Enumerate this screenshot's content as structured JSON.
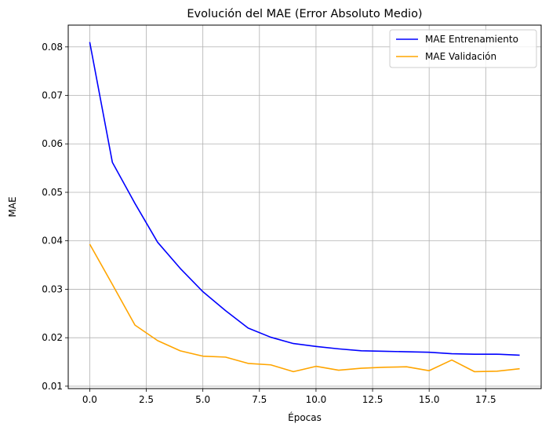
{
  "chart_data": {
    "type": "line",
    "title": "Evolución del MAE (Error Absoluto Medio)",
    "xlabel": "Épocas",
    "ylabel": "MAE",
    "xlim": [
      -0.95,
      19.95
    ],
    "ylim": [
      0.0095,
      0.0845
    ],
    "xticks": [
      0.0,
      2.5,
      5.0,
      7.5,
      10.0,
      12.5,
      15.0,
      17.5
    ],
    "xtick_labels": [
      "0.0",
      "2.5",
      "5.0",
      "7.5",
      "10.0",
      "12.5",
      "15.0",
      "17.5"
    ],
    "yticks": [
      0.01,
      0.02,
      0.03,
      0.04,
      0.05,
      0.06,
      0.07,
      0.08
    ],
    "ytick_labels": [
      "0.01",
      "0.02",
      "0.03",
      "0.04",
      "0.05",
      "0.06",
      "0.07",
      "0.08"
    ],
    "grid": true,
    "legend_position": "top-right",
    "x": [
      0,
      1,
      2,
      3,
      4,
      5,
      6,
      7,
      8,
      9,
      10,
      11,
      12,
      13,
      14,
      15,
      16,
      17,
      18,
      19
    ],
    "series": [
      {
        "name": "MAE Entrenamiento",
        "color": "#0000ff",
        "values": [
          0.081,
          0.0562,
          0.0477,
          0.0397,
          0.0343,
          0.0295,
          0.0256,
          0.022,
          0.0201,
          0.0188,
          0.0182,
          0.0177,
          0.0173,
          0.0172,
          0.0171,
          0.017,
          0.0167,
          0.0166,
          0.0166,
          0.0164
        ]
      },
      {
        "name": "MAE Validación",
        "color": "#ffa500",
        "values": [
          0.0393,
          0.031,
          0.0226,
          0.0194,
          0.0173,
          0.0162,
          0.016,
          0.0147,
          0.0144,
          0.013,
          0.0141,
          0.0133,
          0.0137,
          0.0139,
          0.014,
          0.0132,
          0.0154,
          0.013,
          0.0131,
          0.0136
        ]
      }
    ]
  }
}
